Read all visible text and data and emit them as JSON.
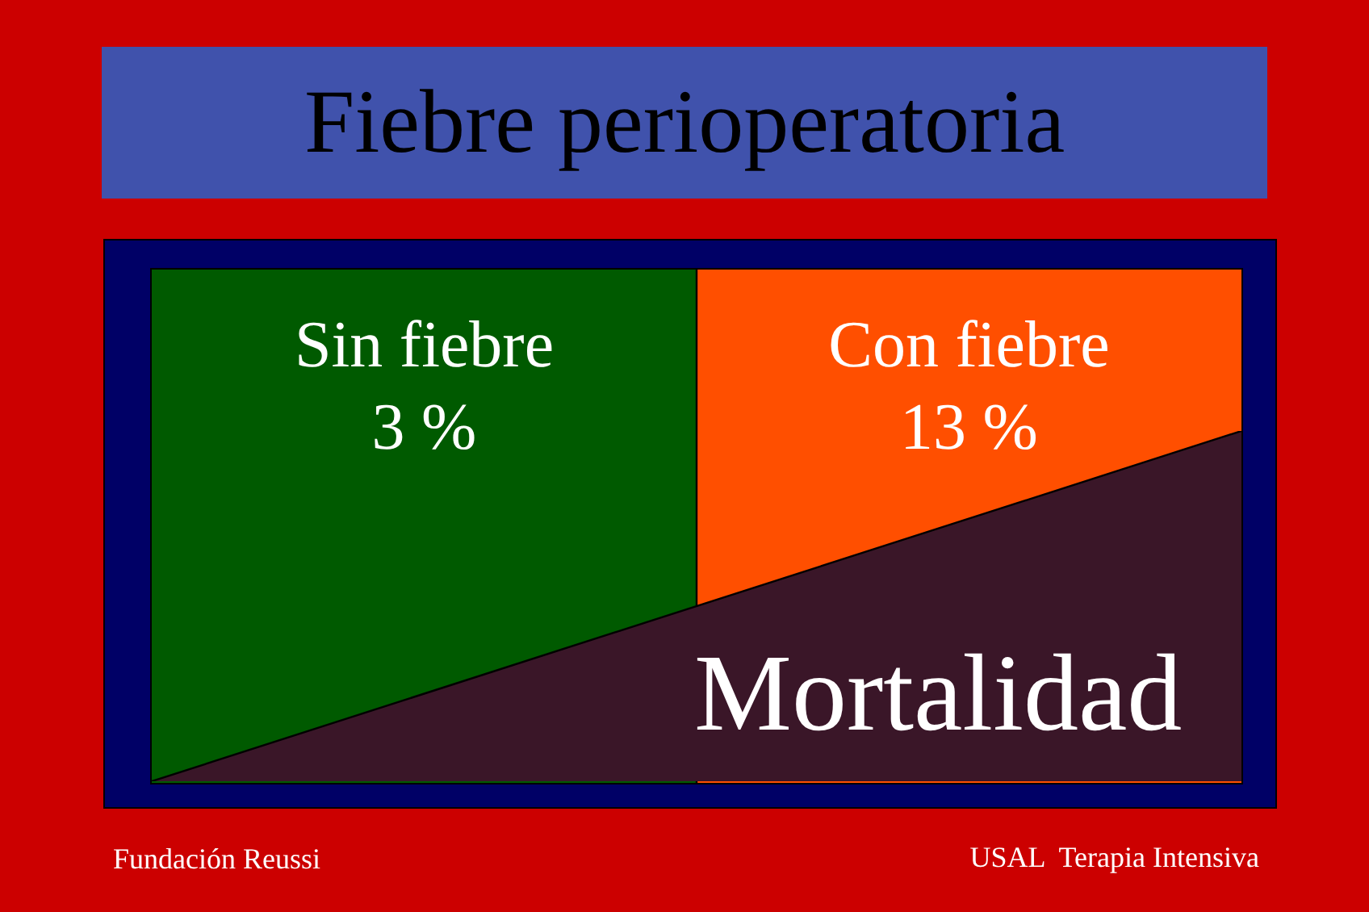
{
  "chart_data": {
    "type": "other",
    "title": "Fiebre perioperatoria",
    "categories": [
      "Sin fiebre",
      "Con fiebre"
    ],
    "values": [
      3,
      13
    ],
    "value_labels": [
      "3 %",
      "13 %"
    ],
    "colors": [
      "#005a00",
      "#ff4f00"
    ],
    "annotations": [
      "Mortalidad",
      "Fundación Reussi",
      "USAL  Terapia Intensiva"
    ]
  }
}
